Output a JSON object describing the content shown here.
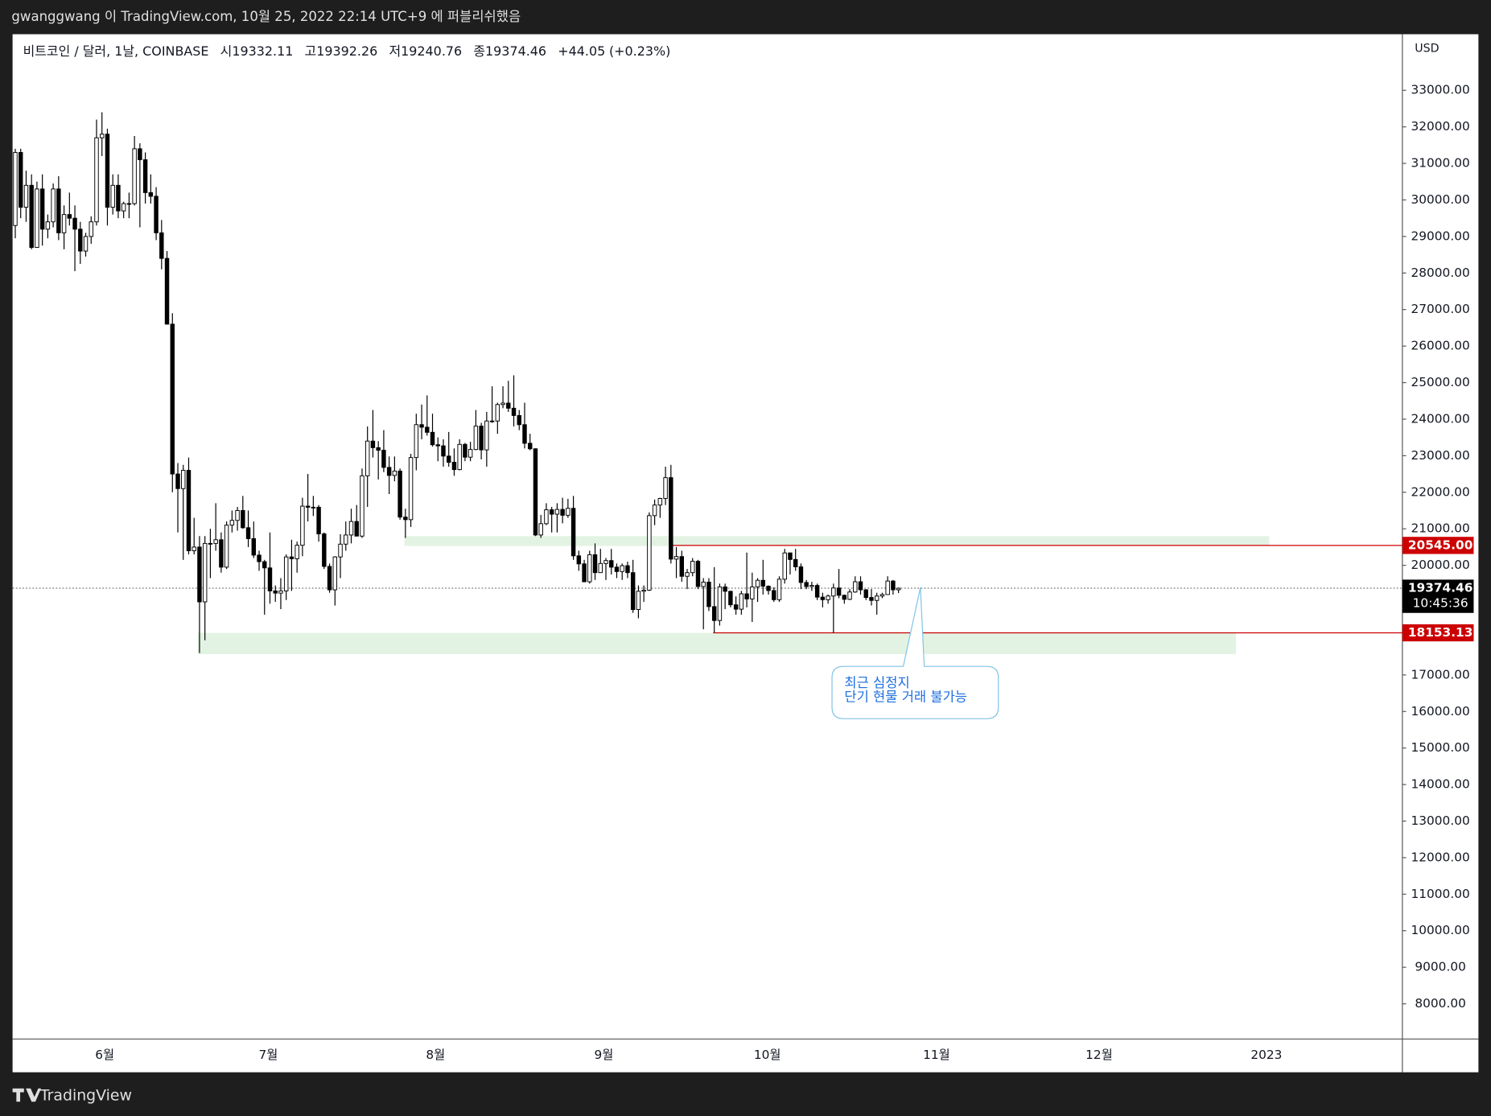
{
  "chart_data": {
    "type": "candlestick",
    "header": "gwanggwang 이 TradingView.com, 10월 25, 2022 22:14 UTC+9 에 퍼블리쉬했음",
    "brand": "TradingView",
    "legend": {
      "symbol": "비트코인 / 달러, 1날, COINBASE",
      "open_prefix": "시",
      "open": 19332.11,
      "high_prefix": "고",
      "high": 19392.26,
      "low_prefix": "저",
      "low": 19240.76,
      "close_prefix": "종",
      "close": 19374.46,
      "change": "+44.05",
      "change_pct": "(+0.23%)"
    },
    "currency": "USD",
    "up_color": "#ffffff",
    "down_color": "#000000",
    "wick_color": "#000000",
    "ylim": [
      7037,
      34535
    ],
    "yticks": [
      {
        "value": 33000,
        "label": "33000.00"
      },
      {
        "value": 32000,
        "label": "32000.00"
      },
      {
        "value": 31000,
        "label": "31000.00"
      },
      {
        "value": 30000,
        "label": "30000.00"
      },
      {
        "value": 29000,
        "label": "29000.00"
      },
      {
        "value": 28000,
        "label": "28000.00"
      },
      {
        "value": 27000,
        "label": "27000.00"
      },
      {
        "value": 26000,
        "label": "26000.00"
      },
      {
        "value": 25000,
        "label": "25000.00"
      },
      {
        "value": 24000,
        "label": "24000.00"
      },
      {
        "value": 23000,
        "label": "23000.00"
      },
      {
        "value": 22000,
        "label": "22000.00"
      },
      {
        "value": 21000,
        "label": "21000.00"
      },
      {
        "value": 20000,
        "label": "20000.00"
      },
      {
        "value": 17000,
        "label": "17000.00"
      },
      {
        "value": 16000,
        "label": "16000.00"
      },
      {
        "value": 15000,
        "label": "15000.00"
      },
      {
        "value": 14000,
        "label": "14000.00"
      },
      {
        "value": 13000,
        "label": "13000.00"
      },
      {
        "value": 12000,
        "label": "12000.00"
      },
      {
        "value": 11000,
        "label": "11000.00"
      },
      {
        "value": 10000,
        "label": "10000.00"
      },
      {
        "value": 9000,
        "label": "9000.00"
      },
      {
        "value": 8000,
        "label": "8000.00"
      }
    ],
    "xticks": [
      "6월",
      "7월",
      "8월",
      "9월",
      "10월",
      "11월",
      "12월",
      "2023"
    ],
    "zones": [
      {
        "top": 20800,
        "bottom": 20530,
        "color": "#e3f3e3"
      },
      {
        "top": 18150,
        "bottom": 17570,
        "color": "#e3f3e3"
      }
    ],
    "price_lines": [
      {
        "value": 20545,
        "label": "20545.00",
        "color": "#cc0000"
      },
      {
        "value": 18153.13,
        "label": "18153.13",
        "color": "#cc0000"
      }
    ],
    "current_price": {
      "value": 19374.46,
      "countdown": "10:45:36"
    },
    "annotation": [
      "최근 심정지",
      "단기 현물 거래 불가능"
    ],
    "candles": [
      [
        29300,
        31400,
        28950,
        31300
      ],
      [
        31300,
        31400,
        29500,
        29800
      ],
      [
        29800,
        30800,
        29400,
        30400
      ],
      [
        30400,
        30700,
        28650,
        28700
      ],
      [
        28700,
        30500,
        28700,
        30300
      ],
      [
        30300,
        30700,
        28750,
        29200
      ],
      [
        29200,
        29600,
        28950,
        29400
      ],
      [
        29400,
        30450,
        29250,
        30300
      ],
      [
        30300,
        30650,
        28900,
        29100
      ],
      [
        29100,
        29850,
        28650,
        29600
      ],
      [
        29600,
        30200,
        29300,
        29500
      ],
      [
        29500,
        29850,
        28050,
        29200
      ],
      [
        29200,
        29400,
        28250,
        28600
      ],
      [
        28600,
        29100,
        28450,
        29000
      ],
      [
        29000,
        29550,
        28800,
        29400
      ],
      [
        29400,
        32200,
        29300,
        31700
      ],
      [
        31700,
        32400,
        31200,
        31800
      ],
      [
        31800,
        31950,
        29300,
        29800
      ],
      [
        29800,
        30700,
        29600,
        30400
      ],
      [
        30400,
        30700,
        29500,
        29700
      ],
      [
        29700,
        29950,
        29500,
        29900
      ],
      [
        29900,
        30200,
        29500,
        29900
      ],
      [
        29900,
        31750,
        29850,
        31400
      ],
      [
        31400,
        31550,
        29250,
        31100
      ],
      [
        31100,
        31300,
        29900,
        30200
      ],
      [
        30200,
        30700,
        29900,
        30100
      ],
      [
        30100,
        30350,
        28900,
        29100
      ],
      [
        29100,
        29450,
        28100,
        28400
      ],
      [
        28400,
        28600,
        26600,
        26600
      ],
      [
        26600,
        26900,
        22000,
        22500
      ],
      [
        22500,
        22800,
        20900,
        22100
      ],
      [
        22100,
        22750,
        20150,
        22600
      ],
      [
        22600,
        22950,
        20300,
        20400
      ],
      [
        20400,
        21300,
        20300,
        20500
      ],
      [
        20500,
        20800,
        17600,
        19000
      ],
      [
        19000,
        20800,
        17950,
        20600
      ],
      [
        20600,
        21000,
        19650,
        20600
      ],
      [
        20600,
        21700,
        20400,
        20700
      ],
      [
        20700,
        20900,
        19800,
        19950
      ],
      [
        19950,
        21200,
        19900,
        21100
      ],
      [
        21100,
        21500,
        20900,
        21230
      ],
      [
        21230,
        21600,
        20950,
        21500
      ],
      [
        21500,
        21900,
        21000,
        21030
      ],
      [
        21030,
        21500,
        20500,
        20730
      ],
      [
        20730,
        21200,
        20200,
        20280
      ],
      [
        20280,
        20400,
        19850,
        20100
      ],
      [
        20100,
        20150,
        18650,
        19930
      ],
      [
        19930,
        20900,
        18950,
        19300
      ],
      [
        19300,
        19450,
        19000,
        19240
      ],
      [
        19240,
        19650,
        18800,
        19300
      ],
      [
        19300,
        20300,
        19050,
        20230
      ],
      [
        20230,
        20700,
        19300,
        20180
      ],
      [
        20180,
        20650,
        19800,
        20550
      ],
      [
        20550,
        21850,
        20250,
        21620
      ],
      [
        21620,
        22500,
        21200,
        21590
      ],
      [
        21590,
        21900,
        21350,
        21590
      ],
      [
        21590,
        21650,
        20650,
        20860
      ],
      [
        20860,
        20900,
        19900,
        19970
      ],
      [
        19970,
        20050,
        19250,
        19330
      ],
      [
        19330,
        20250,
        18900,
        20230
      ],
      [
        20230,
        20850,
        19650,
        20580
      ],
      [
        20580,
        21200,
        20400,
        20830
      ],
      [
        20830,
        21550,
        20600,
        21200
      ],
      [
        21200,
        21650,
        20800,
        20800
      ],
      [
        20800,
        22650,
        20750,
        22450
      ],
      [
        22450,
        23800,
        21600,
        23400
      ],
      [
        23400,
        24250,
        22950,
        23220
      ],
      [
        23220,
        23400,
        22350,
        23150
      ],
      [
        23150,
        23700,
        22550,
        22680
      ],
      [
        22680,
        22980,
        21950,
        22460
      ],
      [
        22460,
        22980,
        22300,
        22580
      ],
      [
        22580,
        22650,
        21250,
        21320
      ],
      [
        21320,
        21550,
        20750,
        21250
      ],
      [
        21250,
        23050,
        21050,
        22950
      ],
      [
        22950,
        24150,
        22600,
        23850
      ],
      [
        23850,
        24400,
        23450,
        23780
      ],
      [
        23780,
        24650,
        23550,
        23640
      ],
      [
        23640,
        24150,
        23250,
        23300
      ],
      [
        23300,
        23500,
        22850,
        23270
      ],
      [
        23270,
        23450,
        22700,
        22990
      ],
      [
        22990,
        23650,
        22700,
        22820
      ],
      [
        22820,
        23200,
        22450,
        22620
      ],
      [
        22620,
        23450,
        22600,
        23310
      ],
      [
        23310,
        23350,
        22850,
        22960
      ],
      [
        22960,
        23380,
        22850,
        23170
      ],
      [
        23170,
        24250,
        23150,
        23810
      ],
      [
        23810,
        23900,
        22900,
        23160
      ],
      [
        23160,
        24200,
        22700,
        23950
      ],
      [
        23950,
        24900,
        23900,
        23950
      ],
      [
        23950,
        24450,
        23600,
        24400
      ],
      [
        24400,
        24900,
        24300,
        24440
      ],
      [
        24440,
        25050,
        24200,
        24300
      ],
      [
        24300,
        25200,
        23800,
        24100
      ],
      [
        24100,
        24250,
        23700,
        23850
      ],
      [
        23850,
        24450,
        23200,
        23340
      ],
      [
        23340,
        23600,
        23150,
        23190
      ],
      [
        23190,
        23200,
        20800,
        20830
      ],
      [
        20830,
        21380,
        20750,
        21140
      ],
      [
        21140,
        21700,
        21100,
        21520
      ],
      [
        21520,
        21600,
        20900,
        21400
      ],
      [
        21400,
        21700,
        20900,
        21530
      ],
      [
        21530,
        21850,
        21150,
        21370
      ],
      [
        21370,
        21820,
        21300,
        21560
      ],
      [
        21560,
        21900,
        20150,
        20260
      ],
      [
        20260,
        20400,
        19850,
        20040
      ],
      [
        20040,
        20150,
        19550,
        19550
      ],
      [
        19550,
        20400,
        19500,
        20290
      ],
      [
        20290,
        20600,
        19600,
        19800
      ],
      [
        19800,
        20450,
        19800,
        20050
      ],
      [
        20050,
        20200,
        19600,
        20130
      ],
      [
        20130,
        20450,
        19750,
        19950
      ],
      [
        19950,
        20050,
        19650,
        19830
      ],
      [
        19830,
        20050,
        19600,
        19990
      ],
      [
        19990,
        20100,
        19650,
        19800
      ],
      [
        19800,
        20150,
        18700,
        18790
      ],
      [
        18790,
        19450,
        18550,
        19290
      ],
      [
        19290,
        19450,
        19000,
        19320
      ],
      [
        19320,
        21450,
        19300,
        21360
      ],
      [
        21360,
        21800,
        21100,
        21650
      ],
      [
        21650,
        21850,
        21300,
        21830
      ],
      [
        21830,
        22700,
        21650,
        22400
      ],
      [
        22400,
        22750,
        20050,
        20170
      ],
      [
        20170,
        20500,
        19650,
        20240
      ],
      [
        20240,
        20400,
        19550,
        19700
      ],
      [
        19700,
        19900,
        19350,
        19800
      ],
      [
        19800,
        20200,
        19700,
        20110
      ],
      [
        20110,
        20150,
        19350,
        19420
      ],
      [
        19420,
        19650,
        18250,
        19540
      ],
      [
        19540,
        19650,
        18750,
        18870
      ],
      [
        18870,
        19950,
        18160,
        18490
      ],
      [
        18490,
        19500,
        18350,
        19410
      ],
      [
        19410,
        19500,
        18800,
        19290
      ],
      [
        19290,
        19300,
        18850,
        18920
      ],
      [
        18920,
        19150,
        18650,
        18800
      ],
      [
        18800,
        19300,
        18650,
        19220
      ],
      [
        19220,
        20350,
        18850,
        19080
      ],
      [
        19080,
        19800,
        18450,
        19410
      ],
      [
        19410,
        19650,
        19000,
        19590
      ],
      [
        19590,
        20150,
        19200,
        19430
      ],
      [
        19430,
        19450,
        19200,
        19310
      ],
      [
        19310,
        19400,
        19000,
        19060
      ],
      [
        19060,
        19700,
        19000,
        19620
      ],
      [
        19620,
        20450,
        19500,
        20340
      ],
      [
        20340,
        20350,
        19750,
        20160
      ],
      [
        20160,
        20450,
        19850,
        19960
      ],
      [
        19960,
        20050,
        19350,
        19530
      ],
      [
        19530,
        19600,
        19350,
        19420
      ],
      [
        19420,
        19550,
        19300,
        19450
      ],
      [
        19450,
        19500,
        19050,
        19130
      ],
      [
        19130,
        19250,
        18850,
        19060
      ],
      [
        19060,
        19200,
        18950,
        19160
      ],
      [
        19160,
        19500,
        18153.13,
        19380
      ],
      [
        19380,
        19900,
        19100,
        19180
      ],
      [
        19180,
        19200,
        18950,
        19070
      ],
      [
        19070,
        19350,
        19050,
        19270
      ],
      [
        19270,
        19700,
        19250,
        19550
      ],
      [
        19550,
        19700,
        19200,
        19330
      ],
      [
        19330,
        19350,
        19050,
        19120
      ],
      [
        19120,
        19350,
        18900,
        19040
      ],
      [
        19040,
        19250,
        18650,
        19160
      ],
      [
        19160,
        19250,
        19100,
        19200
      ],
      [
        19200,
        19700,
        19200,
        19570
      ],
      [
        19570,
        19600,
        19200,
        19330
      ],
      [
        19332.11,
        19392.26,
        19240.76,
        19374.46
      ]
    ]
  }
}
